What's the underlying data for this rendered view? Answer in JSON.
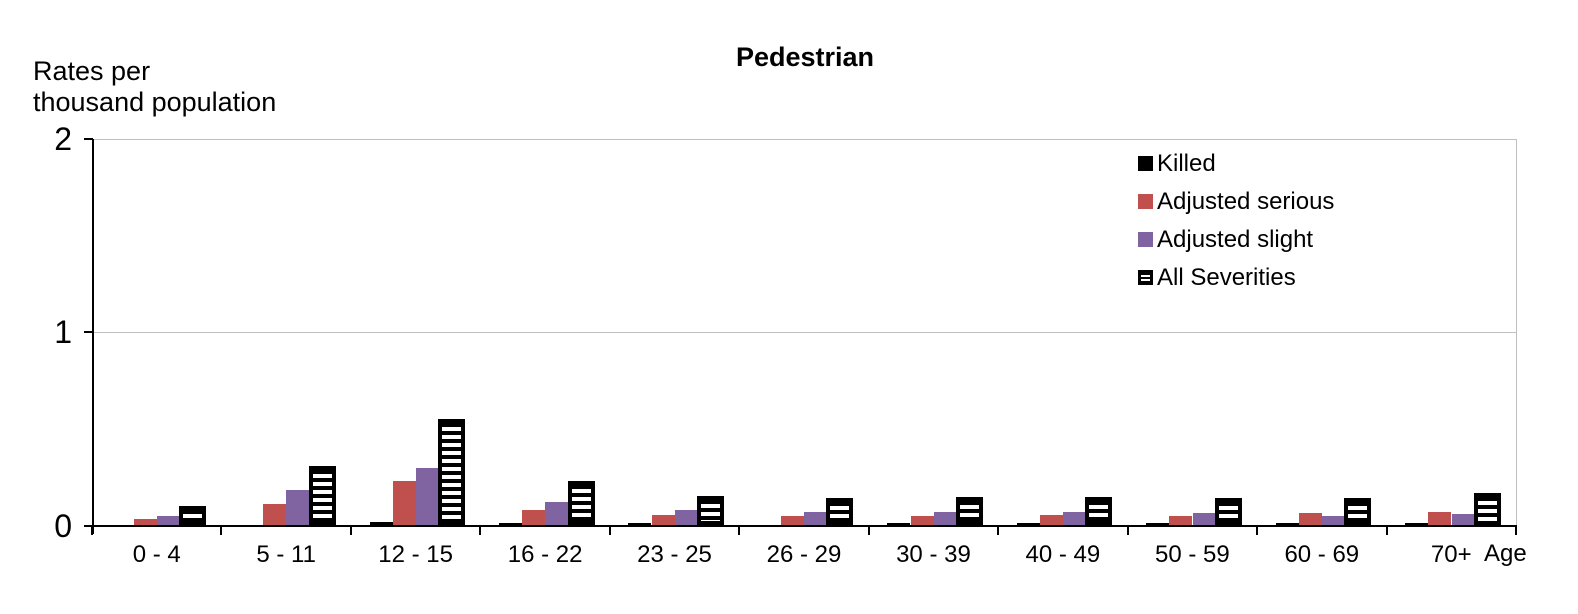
{
  "title": "Pedestrian",
  "y_axis_title": "Rates per\nthousand population",
  "x_axis_title": "Age",
  "colors": {
    "killed": "#000000",
    "adjusted_serious": "#C0504D",
    "adjusted_slight": "#8064A2",
    "all_severities_fill": "#FFFFFF",
    "all_severities_stripe": "#000000",
    "gridline": "#BFBFBF"
  },
  "chart_data": {
    "type": "bar",
    "title": "Pedestrian",
    "ylabel": "Rates per thousand population",
    "xlabel": "Age",
    "ylim": [
      0,
      2
    ],
    "yticks": [
      0,
      1,
      2
    ],
    "grid": "horizontal",
    "legend_position": "top-right",
    "categories": [
      "0 - 4",
      "5  - 11",
      "12 - 15",
      "16 - 22",
      "23 - 25",
      "26 - 29",
      "30 - 39",
      "40 - 49",
      "50 - 59",
      "60 - 69",
      "70+"
    ],
    "series": [
      {
        "name": "Killed",
        "color": "#000000",
        "pattern": "solid",
        "values": [
          0.005,
          0.005,
          0.02,
          0.012,
          0.013,
          0.005,
          0.011,
          0.013,
          0.011,
          0.011,
          0.015
        ]
      },
      {
        "name": "Adjusted serious",
        "color": "#C0504D",
        "pattern": "solid",
        "values": [
          0.035,
          0.11,
          0.23,
          0.08,
          0.055,
          0.05,
          0.05,
          0.055,
          0.05,
          0.065,
          0.07
        ]
      },
      {
        "name": "Adjusted slight",
        "color": "#8064A2",
        "pattern": "solid",
        "values": [
          0.05,
          0.185,
          0.3,
          0.12,
          0.08,
          0.07,
          0.07,
          0.07,
          0.065,
          0.05,
          0.06
        ]
      },
      {
        "name": "All Severities",
        "color": "#000000",
        "pattern": "stripes",
        "values": [
          0.1,
          0.31,
          0.55,
          0.23,
          0.155,
          0.14,
          0.15,
          0.145,
          0.14,
          0.14,
          0.17
        ]
      }
    ]
  }
}
